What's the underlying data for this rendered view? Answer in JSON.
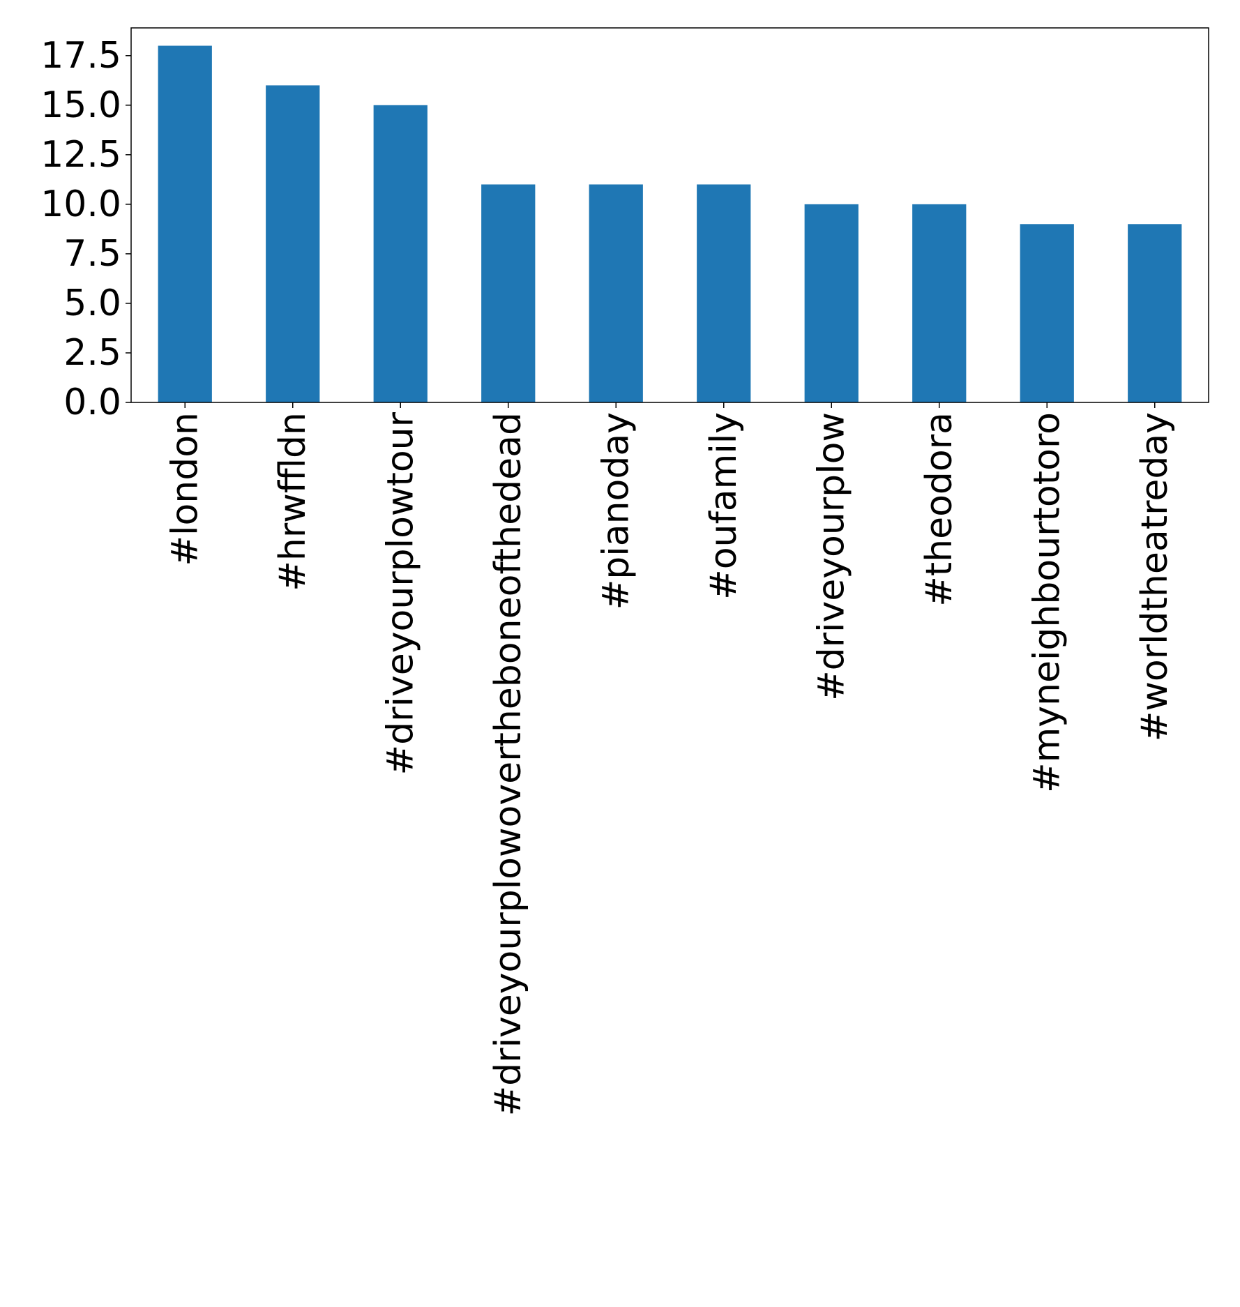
{
  "chart_data": {
    "type": "bar",
    "title": "",
    "xlabel": "",
    "ylabel": "",
    "categories": [
      "#london",
      "#hrwffldn",
      "#driveyourplowtour",
      "#driveyourplowovertheboneofthedead",
      "#pianoday",
      "#oufamily",
      "#driveyourplow",
      "#theodora",
      "#myneighbourtotoro",
      "#worldtheatreday"
    ],
    "values": [
      18,
      16,
      15,
      11,
      11,
      11,
      10,
      10,
      9,
      9
    ],
    "ylim": [
      0,
      18.9
    ],
    "yticks": [
      0,
      2.5,
      5,
      7.5,
      10,
      12.5,
      15,
      17.5
    ],
    "ytick_labels": [
      "0.0",
      "2.5",
      "5.0",
      "7.5",
      "10.0",
      "12.5",
      "15.0",
      "17.5"
    ],
    "grid": false,
    "legend": "none",
    "bar_color": "#1f77b4"
  }
}
